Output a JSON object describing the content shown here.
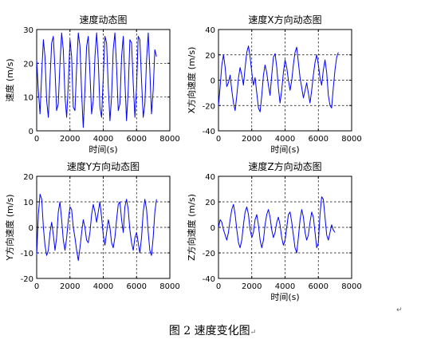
{
  "chart_data": [
    {
      "type": "line",
      "title": "速度动态图",
      "xlabel": "时间(s)",
      "ylabel": "速度 (m/s)",
      "xlim": [
        0,
        8000
      ],
      "ylim": [
        0,
        30
      ],
      "xticks": [
        "0",
        "2000",
        "4000",
        "6000",
        "8000"
      ],
      "yticks": [
        "0",
        "10",
        "20",
        "30"
      ],
      "grid": true,
      "series": [
        {
          "x": [
            0,
            100,
            200,
            300,
            400,
            500,
            600,
            700,
            800,
            900,
            1000,
            1100,
            1200,
            1300,
            1400,
            1500,
            1600,
            1700,
            1800,
            1900,
            2000,
            2100,
            2200,
            2300,
            2400,
            2500,
            2600,
            2700,
            2800,
            2900,
            3000,
            3100,
            3200,
            3300,
            3400,
            3500,
            3600,
            3700,
            3800,
            3900,
            4000,
            4100,
            4200,
            4300,
            4400,
            4500,
            4600,
            4700,
            4800,
            4900,
            5000,
            5100,
            5200,
            5300,
            5400,
            5500,
            5600,
            5700,
            5800,
            5900,
            6000,
            6100,
            6200,
            6300,
            6400,
            6500,
            6600,
            6700,
            6800,
            6900,
            7000,
            7100,
            7200
          ],
          "y": [
            21,
            12,
            5,
            17,
            27,
            22,
            9,
            4,
            15,
            26,
            28,
            18,
            6,
            8,
            20,
            29,
            24,
            10,
            4,
            14,
            27,
            22,
            7,
            6,
            19,
            29,
            25,
            11,
            1,
            12,
            25,
            28,
            17,
            5,
            9,
            22,
            29,
            21,
            7,
            4,
            16,
            28,
            26,
            13,
            3,
            10,
            24,
            29,
            19,
            6,
            8,
            22,
            28,
            15,
            3,
            12,
            27,
            26,
            14,
            4,
            13,
            28,
            27,
            15,
            4,
            8,
            21,
            29,
            18,
            5,
            12,
            24,
            22
          ]
        }
      ]
    },
    {
      "type": "line",
      "title": "速度X方向动态图",
      "xlabel": "时间(s)",
      "ylabel": "X方向速度 (m/s)",
      "xlim": [
        0,
        8000
      ],
      "ylim": [
        -40,
        40
      ],
      "xticks": [
        "0",
        "2000",
        "4000",
        "6000",
        "8000"
      ],
      "yticks": [
        "-40",
        "-20",
        "0",
        "20",
        "40"
      ],
      "grid": true,
      "series": [
        {
          "x": [
            0,
            100,
            200,
            300,
            400,
            500,
            600,
            700,
            800,
            900,
            1000,
            1100,
            1200,
            1300,
            1400,
            1500,
            1600,
            1700,
            1800,
            1900,
            2000,
            2100,
            2200,
            2300,
            2400,
            2500,
            2600,
            2700,
            2800,
            2900,
            3000,
            3100,
            3200,
            3300,
            3400,
            3500,
            3600,
            3700,
            3800,
            3900,
            4000,
            4100,
            4200,
            4300,
            4400,
            4500,
            4600,
            4700,
            4800,
            4900,
            5000,
            5100,
            5200,
            5300,
            5400,
            5500,
            5600,
            5700,
            5800,
            5900,
            6000,
            6100,
            6200,
            6300,
            6400,
            6500,
            6600,
            6700,
            6800,
            6900,
            7000,
            7100,
            7200
          ],
          "y": [
            -20,
            -5,
            12,
            20,
            10,
            -5,
            -2,
            4,
            -8,
            -18,
            -24,
            -12,
            2,
            10,
            4,
            -4,
            10,
            22,
            27,
            18,
            6,
            -4,
            2,
            -10,
            -22,
            -25,
            -12,
            4,
            12,
            6,
            -4,
            -12,
            4,
            18,
            21,
            10,
            -6,
            -18,
            -8,
            6,
            16,
            10,
            0,
            -8,
            0,
            12,
            22,
            26,
            14,
            2,
            -6,
            -14,
            -8,
            -2,
            -10,
            -18,
            -8,
            4,
            14,
            20,
            12,
            2,
            -4,
            8,
            16,
            6,
            -12,
            -20,
            -22,
            -6,
            8,
            18,
            22
          ]
        }
      ]
    },
    {
      "type": "line",
      "title": "速度Y方向动态图",
      "xlabel": "",
      "ylabel": "Y方向速度 (m/s)",
      "xlim": [
        0,
        8000
      ],
      "ylim": [
        -20,
        20
      ],
      "xticks": [
        "0",
        "2000",
        "4000",
        "6000",
        "8000"
      ],
      "yticks": [
        "-20",
        "-10",
        "0",
        "10",
        "20"
      ],
      "grid": true,
      "series": [
        {
          "x": [
            0,
            100,
            200,
            300,
            400,
            500,
            600,
            700,
            800,
            900,
            1000,
            1100,
            1200,
            1300,
            1400,
            1500,
            1600,
            1700,
            1800,
            1900,
            2000,
            2100,
            2200,
            2300,
            2400,
            2500,
            2600,
            2700,
            2800,
            2900,
            3000,
            3100,
            3200,
            3300,
            3400,
            3500,
            3600,
            3700,
            3800,
            3900,
            4000,
            4100,
            4200,
            4300,
            4400,
            4500,
            4600,
            4700,
            4800,
            4900,
            5000,
            5100,
            5200,
            5300,
            5400,
            5500,
            5600,
            5700,
            5800,
            5900,
            6000,
            6100,
            6200,
            6300,
            6400,
            6500,
            6600,
            6700,
            6800,
            6900,
            7000,
            7100,
            7200
          ],
          "y": [
            -11,
            5,
            13,
            11,
            0,
            -7,
            -11,
            -9,
            -2,
            2,
            -3,
            -9,
            -4,
            6,
            10,
            3,
            -5,
            -9,
            -4,
            3,
            8,
            7,
            0,
            -4,
            -9,
            -13,
            -8,
            -2,
            3,
            0,
            -5,
            -6,
            -2,
            5,
            9,
            6,
            2,
            6,
            10,
            4,
            -3,
            -7,
            -2,
            3,
            0,
            -6,
            -8,
            -4,
            3,
            9,
            10,
            3,
            -2,
            8,
            11,
            7,
            -1,
            -6,
            -9,
            -4,
            -2,
            -6,
            -10,
            -4,
            6,
            11,
            7,
            -2,
            -9,
            -11,
            -4,
            6,
            11
          ]
        }
      ]
    },
    {
      "type": "line",
      "title": "速度Z方向动态图",
      "xlabel": "时间(s)",
      "ylabel": "Z方向速度 (m/s)",
      "xlim": [
        0,
        8000
      ],
      "ylim": [
        -40,
        40
      ],
      "xticks": [
        "0",
        "2000",
        "4000",
        "6000",
        "8000"
      ],
      "yticks": [
        "-40",
        "-20",
        "0",
        "20",
        "40"
      ],
      "grid": true,
      "series": [
        {
          "x": [
            0,
            100,
            200,
            300,
            400,
            500,
            600,
            700,
            800,
            900,
            1000,
            1100,
            1200,
            1300,
            1400,
            1500,
            1600,
            1700,
            1800,
            1900,
            2000,
            2100,
            2200,
            2300,
            2400,
            2500,
            2600,
            2700,
            2800,
            2900,
            3000,
            3100,
            3200,
            3300,
            3400,
            3500,
            3600,
            3700,
            3800,
            3900,
            4000,
            4100,
            4200,
            4300,
            4400,
            4500,
            4600,
            4700,
            4800,
            4900,
            5000,
            5100,
            5200,
            5300,
            5400,
            5500,
            5600,
            5700,
            5800,
            5900,
            6000,
            6100,
            6200,
            6300,
            6400,
            6500,
            6600,
            6700,
            6800,
            6900,
            7000
          ],
          "y": [
            0,
            6,
            4,
            -2,
            -6,
            -10,
            -4,
            6,
            14,
            18,
            10,
            -2,
            -12,
            -16,
            -10,
            2,
            12,
            16,
            10,
            -2,
            -8,
            -4,
            6,
            10,
            2,
            -10,
            -16,
            -10,
            2,
            10,
            14,
            8,
            -2,
            -8,
            -4,
            4,
            8,
            2,
            -8,
            -14,
            -10,
            0,
            10,
            12,
            4,
            -6,
            -16,
            -20,
            -8,
            6,
            14,
            8,
            -4,
            -10,
            -6,
            4,
            12,
            8,
            -4,
            -16,
            -12,
            10,
            24,
            22,
            8,
            -6,
            -10,
            -4,
            2,
            -2,
            -4
          ]
        }
      ]
    }
  ],
  "caption": "图 2  速度变化图",
  "paragraph_mark": "↵"
}
